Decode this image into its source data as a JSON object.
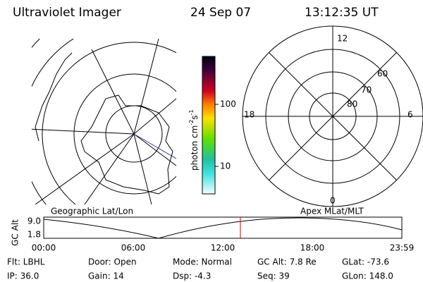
{
  "header": {
    "title": "Ultraviolet Imager",
    "date": "24 Sep 07",
    "time": "13:12:35 UT"
  },
  "colorbar": {
    "label_parts": [
      "photon cm",
      "-2",
      "s",
      "-1"
    ],
    "ticks": [
      "100",
      "10"
    ]
  },
  "left_map": {
    "label": "Geographic Lat/Lon"
  },
  "right_map": {
    "label": "Apex MLat/MLT",
    "mlt_labels": [
      "12",
      "18",
      "6",
      "0"
    ],
    "mlat_labels": [
      "60",
      "70",
      "80"
    ]
  },
  "altitude_plot": {
    "ylabel": "GC Alt",
    "yticks": [
      "9.0",
      "1.8"
    ],
    "xticks": [
      "00:00",
      "06:00",
      "12:00",
      "18:00",
      "23:59"
    ]
  },
  "footer": {
    "rows": [
      [
        "Flt: LBHL",
        "Door: Open",
        "Mode: Normal",
        "GC Alt: 7.8 Re",
        "GLat: -73.6"
      ],
      [
        "IP: 36.0",
        "Gain: 14",
        "Dsp:   -4.3",
        "Seq: 39",
        "GLon: 148.0"
      ]
    ]
  }
}
